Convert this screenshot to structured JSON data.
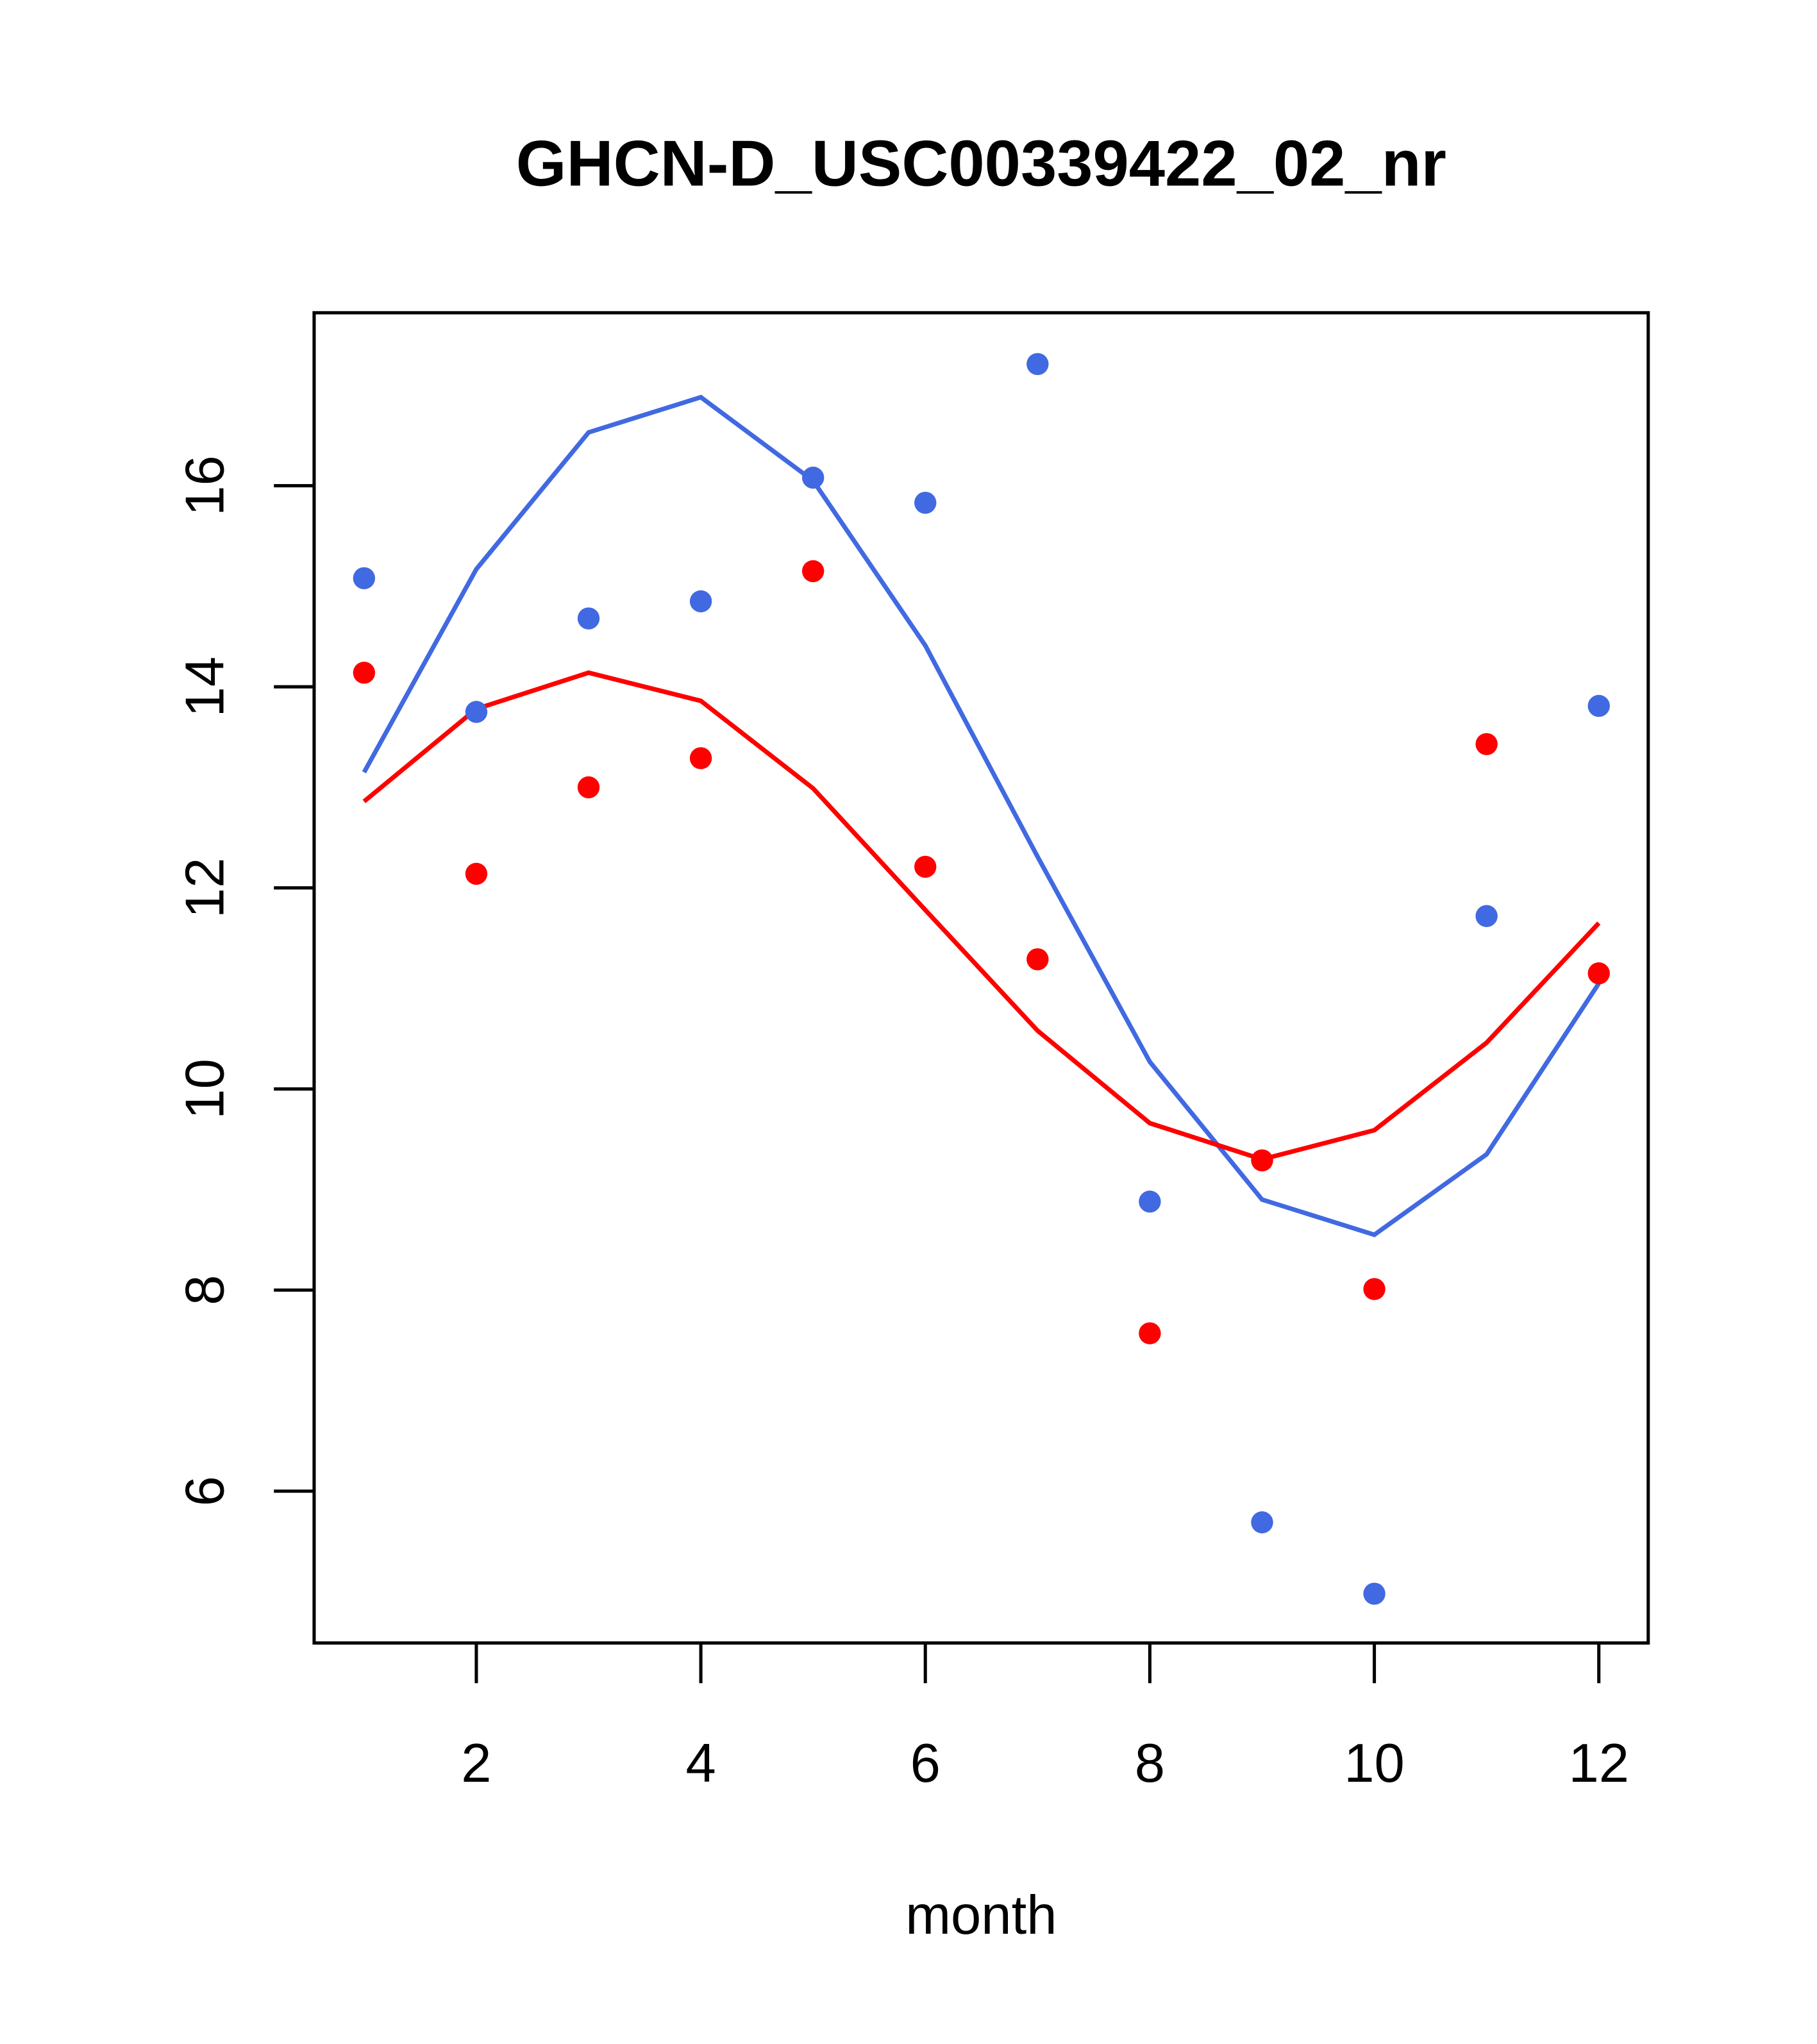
{
  "chart_data": {
    "type": "scatter",
    "title": "GHCN-D_USC00339422_02_nr",
    "xlabel": "month",
    "ylabel": "",
    "xlim": [
      0.555,
      12.44
    ],
    "ylim": [
      4.49,
      17.72
    ],
    "xticks": [
      2,
      4,
      6,
      8,
      10,
      12
    ],
    "yticks": [
      6,
      8,
      10,
      12,
      14,
      16
    ],
    "grid": false,
    "x": [
      1,
      2,
      3,
      4,
      5,
      6,
      7,
      8,
      9,
      10,
      11,
      12
    ],
    "series": [
      {
        "name": "blue points",
        "kind": "points",
        "color": "#4169E1",
        "values": [
          15.08,
          13.75,
          14.68,
          14.85,
          16.08,
          15.83,
          17.21,
          8.88,
          5.69,
          4.98,
          11.72,
          13.81
        ]
      },
      {
        "name": "red points",
        "kind": "points",
        "color": "#FF0000",
        "values": [
          14.14,
          12.14,
          13.0,
          13.29,
          15.15,
          12.21,
          11.29,
          7.57,
          9.29,
          8.01,
          13.43,
          11.15
        ]
      },
      {
        "name": "blue line",
        "kind": "line",
        "color": "#4169E1",
        "values": [
          13.15,
          15.17,
          16.53,
          16.88,
          16.05,
          14.41,
          12.31,
          10.27,
          8.9,
          8.55,
          9.35,
          11.05
        ]
      },
      {
        "name": "red line",
        "kind": "line",
        "color": "#FF0000",
        "values": [
          12.86,
          13.78,
          14.14,
          13.86,
          12.99,
          11.78,
          10.58,
          9.66,
          9.3,
          9.59,
          10.46,
          11.65
        ]
      }
    ]
  }
}
